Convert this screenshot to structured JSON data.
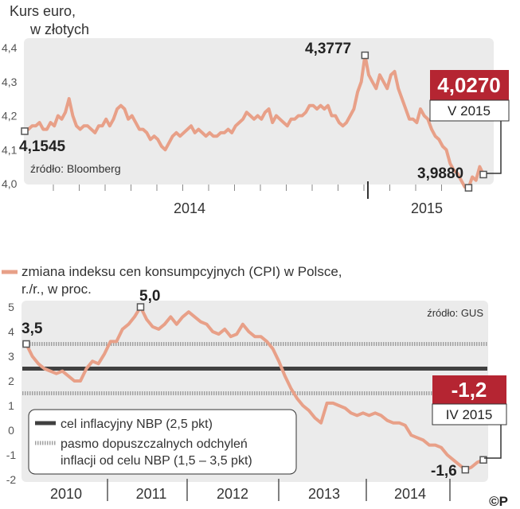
{
  "chart_data": [
    {
      "type": "line",
      "title": "Kurs euro,",
      "subtitle": "w złotych",
      "source": "źródło: Bloomberg",
      "yticks": [
        "4,4",
        "4,3",
        "4,2",
        "4,1",
        "4,0"
      ],
      "ylim": [
        4.0,
        4.4
      ],
      "x_labels": [
        "2014",
        "2015"
      ],
      "series_color": "#e8a088",
      "annotations": {
        "start": "4,1545",
        "max": "4,3777",
        "min": "3,9880",
        "last_value": "4,0270",
        "last_date": "V 2015"
      },
      "series": [
        {
          "values": [
            4.1545,
            4.16,
            4.17,
            4.17,
            4.18,
            4.16,
            4.16,
            4.18,
            4.17,
            4.2,
            4.19,
            4.21,
            4.25,
            4.2,
            4.17,
            4.16,
            4.17,
            4.17,
            4.16,
            4.15,
            4.17,
            4.17,
            4.19,
            4.17,
            4.19,
            4.22,
            4.23,
            4.22,
            4.19,
            4.2,
            4.18,
            4.16,
            4.16,
            4.15,
            4.13,
            4.14,
            4.13,
            4.11,
            4.1,
            4.12,
            4.14,
            4.15,
            4.14,
            4.15,
            4.16,
            4.17,
            4.15,
            4.16,
            4.15,
            4.14,
            4.15,
            4.14,
            4.14,
            4.15,
            4.15,
            4.16,
            4.15,
            4.17,
            4.18,
            4.19,
            4.21,
            4.2,
            4.19,
            4.2,
            4.19,
            4.21,
            4.22,
            4.18,
            4.2,
            4.19,
            4.18,
            4.17,
            4.19,
            4.19,
            4.2,
            4.2,
            4.21,
            4.23,
            4.23,
            4.22,
            4.23,
            4.22,
            4.23,
            4.2,
            4.2,
            4.18,
            4.17,
            4.18,
            4.2,
            4.22,
            4.27,
            4.3,
            4.3777,
            4.32,
            4.3,
            4.28,
            4.32,
            4.3,
            4.28,
            4.32,
            4.33,
            4.28,
            4.25,
            4.22,
            4.19,
            4.19,
            4.18,
            4.22,
            4.2,
            4.19,
            4.16,
            4.14,
            4.13,
            4.11,
            4.1,
            4.06,
            4.04,
            4.03,
            4.01,
            3.99,
            3.988,
            4.02,
            4.01,
            4.05,
            4.027
          ]
        }
      ]
    },
    {
      "type": "line",
      "title": "zmiana indeksu cen konsumpcyjnych (CPI) w Polsce,",
      "subtitle": "r./r., w proc.",
      "source": "źródło: GUS",
      "yticks": [
        "5",
        "4",
        "3",
        "2",
        "1",
        "0",
        "-1",
        "-2"
      ],
      "ylim": [
        -2,
        5
      ],
      "x_labels": [
        "2010",
        "2011",
        "2012",
        "2013",
        "2014"
      ],
      "series_color": "#e8a088",
      "target": 2.5,
      "band": [
        1.5,
        3.5
      ],
      "annotations": {
        "start": "3,5",
        "max": "5,0",
        "min": "-1,6",
        "last_value": "-1,2",
        "last_date": "IV 2015"
      },
      "legend": {
        "target_label": "cel inflacyjny NBP (2,5 pkt)",
        "band_label_1": "pasmo dopuszczalnych odchyleń",
        "band_label_2": "inflacji od celu NBP (1,5 – 3,5 pkt)"
      },
      "series": [
        {
          "values": [
            3.5,
            3.0,
            2.7,
            2.5,
            2.4,
            2.3,
            2.4,
            2.2,
            2.0,
            2.0,
            2.5,
            2.8,
            2.7,
            3.1,
            3.6,
            3.6,
            4.1,
            4.3,
            4.6,
            5.0,
            4.5,
            4.2,
            4.1,
            4.3,
            4.6,
            4.3,
            4.6,
            4.8,
            4.6,
            4.4,
            4.3,
            4.0,
            3.9,
            4.1,
            3.8,
            3.9,
            4.3,
            4.0,
            3.8,
            3.8,
            3.6,
            3.3,
            2.8,
            2.2,
            1.7,
            1.3,
            1.0,
            0.8,
            0.5,
            0.3,
            1.1,
            1.1,
            1.0,
            0.9,
            0.7,
            0.6,
            0.7,
            0.6,
            0.7,
            0.6,
            0.4,
            0.3,
            0.3,
            0.2,
            -0.2,
            -0.3,
            -0.4,
            -0.6,
            -0.6,
            -0.7,
            -1.0,
            -1.2,
            -1.4,
            -1.6,
            -1.5,
            -1.3,
            -1.2
          ]
        }
      ]
    }
  ],
  "badges": {
    "top_value": "4,0270",
    "top_date": "V 2015",
    "bottom_value": "-1,2",
    "bottom_date": "IV 2015"
  },
  "colors": {
    "line": "#e8a088",
    "plot_bg": "#ebebeb",
    "badge_red": "#b52532",
    "target_line": "#404040",
    "band_line": "#a0a0a0"
  },
  "logo": "©P"
}
